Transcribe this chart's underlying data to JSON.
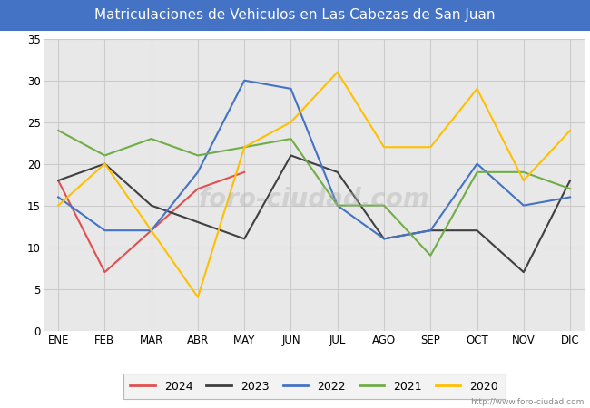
{
  "title": "Matriculaciones de Vehiculos en Las Cabezas de San Juan",
  "title_color": "#ffffff",
  "title_bg_color": "#4472c4",
  "months": [
    "ENE",
    "FEB",
    "MAR",
    "ABR",
    "MAY",
    "JUN",
    "JUL",
    "AGO",
    "SEP",
    "OCT",
    "NOV",
    "DIC"
  ],
  "series_order": [
    "2024",
    "2023",
    "2022",
    "2021",
    "2020"
  ],
  "series": {
    "2024": {
      "color": "#e05050",
      "data": [
        18,
        7,
        12,
        17,
        19,
        null,
        null,
        null,
        null,
        null,
        null,
        null
      ]
    },
    "2023": {
      "color": "#404040",
      "data": [
        18,
        20,
        15,
        13,
        11,
        21,
        19,
        11,
        12,
        12,
        7,
        18
      ]
    },
    "2022": {
      "color": "#4472c4",
      "data": [
        16,
        12,
        12,
        19,
        30,
        29,
        15,
        11,
        12,
        20,
        15,
        16
      ]
    },
    "2021": {
      "color": "#70ad47",
      "data": [
        24,
        21,
        23,
        21,
        22,
        23,
        15,
        15,
        9,
        19,
        19,
        17
      ]
    },
    "2020": {
      "color": "#ffc000",
      "data": [
        15,
        20,
        12,
        4,
        22,
        25,
        31,
        22,
        22,
        29,
        18,
        24
      ]
    }
  },
  "ylim": [
    0,
    35
  ],
  "yticks": [
    0,
    5,
    10,
    15,
    20,
    25,
    30,
    35
  ],
  "grid_color": "#cccccc",
  "plot_bg_color": "#e8e8e8",
  "fig_bg_color": "#ffffff",
  "footer_text": "http://www.foro-ciudad.com",
  "watermark": "foro-ciudad.com",
  "title_fontsize": 11,
  "tick_fontsize": 8.5,
  "legend_fontsize": 9,
  "linewidth": 1.5
}
